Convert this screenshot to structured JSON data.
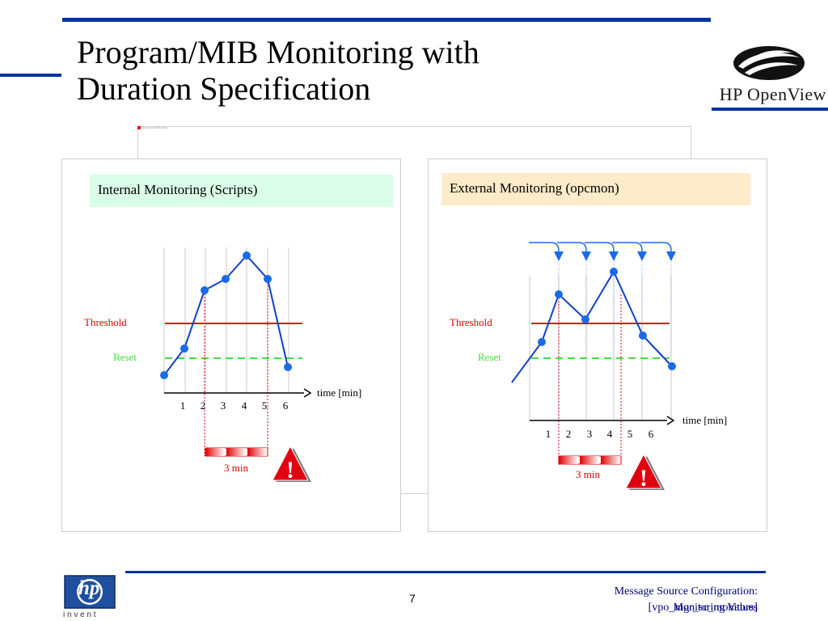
{
  "slide": {
    "title_line1": "Program/MIB Monitoring with",
    "title_line2": "Duration Specification",
    "brand": {
      "logo_word": "HP OpenView",
      "hp_logo_letters": "hp",
      "invent": "i n v e n t"
    },
    "footer": {
      "page_number": "7",
      "title_line1": "Message Source Configuration:",
      "title_line2a": "[vpo_mgr_sc_monitors]",
      "title_line2b": "Monitoring Values"
    },
    "tiny_note": "Monitoring with Duration"
  },
  "panels": {
    "internal": {
      "banner": "Internal Monitoring (Scripts)",
      "banner_color": "#d9fde8",
      "threshold_label": "Threshold",
      "reset_label": "Reset",
      "axis_label": "time [min]",
      "ticks": [
        "1",
        "2",
        "3",
        "4",
        "5",
        "6"
      ],
      "duration_label": "3 min",
      "alert_glyph": "!"
    },
    "external": {
      "banner": "External Monitoring (opcmon)",
      "banner_color": "#fdebc9",
      "threshold_label": "Threshold",
      "reset_label": "Reset",
      "axis_label": "time [min]",
      "ticks": [
        "1",
        "2",
        "3",
        "4",
        "5",
        "6"
      ],
      "duration_label": "3 min",
      "alert_glyph": "!"
    }
  },
  "colors": {
    "title_bar": "#0033a0",
    "line": "#1040c8",
    "point": "#1a6be8",
    "threshold": "#e00000",
    "reset": "#44dd44",
    "label_red": "#dd0000",
    "alert": "#e00010"
  }
}
